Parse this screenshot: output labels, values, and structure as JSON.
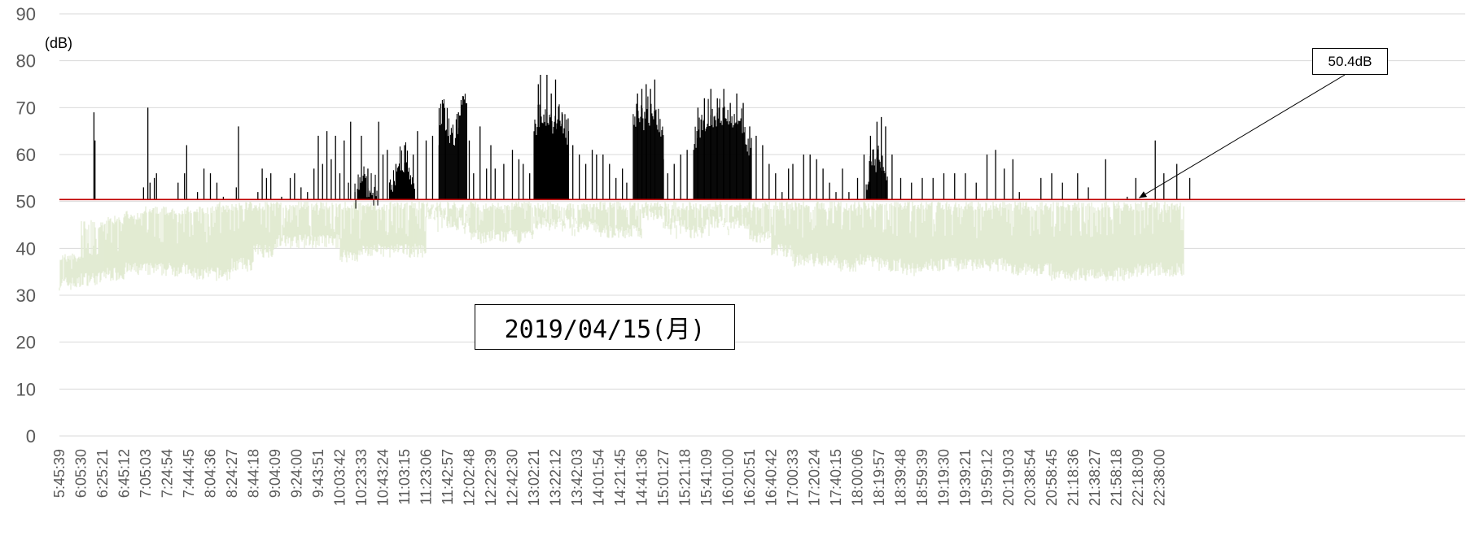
{
  "chart_data": {
    "type": "area",
    "y_unit_label": "(dB)",
    "ylim": [
      0,
      90
    ],
    "yticks": [
      0,
      10,
      20,
      30,
      40,
      50,
      60,
      70,
      80,
      90
    ],
    "grid": true,
    "x_tick_labels": [
      "5:45:39",
      "6:05:30",
      "6:25:21",
      "6:45:12",
      "7:05:03",
      "7:24:54",
      "7:44:45",
      "8:04:36",
      "8:24:27",
      "8:44:18",
      "9:04:09",
      "9:24:00",
      "9:43:51",
      "10:03:42",
      "10:23:33",
      "10:43:24",
      "11:03:15",
      "11:23:06",
      "11:42:57",
      "12:02:48",
      "12:22:39",
      "12:42:30",
      "13:02:21",
      "13:22:12",
      "13:42:03",
      "14:01:54",
      "14:21:45",
      "14:41:36",
      "15:01:27",
      "15:21:18",
      "15:41:09",
      "16:01:00",
      "16:20:51",
      "16:40:42",
      "17:00:33",
      "17:20:24",
      "17:40:15",
      "18:00:06",
      "18:19:57",
      "18:39:48",
      "18:59:39",
      "19:19:30",
      "19:39:21",
      "19:59:12",
      "20:19:03",
      "20:38:54",
      "20:58:45",
      "21:18:36",
      "21:38:27",
      "21:58:18",
      "22:18:09",
      "22:38:00"
    ],
    "series": [
      {
        "role": "background level below threshold",
        "color": "#e2ebd3",
        "segments_per_tick": [
          [
            31,
            39
          ],
          [
            32,
            46
          ],
          [
            33,
            47
          ],
          [
            34,
            48
          ],
          [
            34,
            49
          ],
          [
            34,
            49
          ],
          [
            33,
            49
          ],
          [
            33,
            50
          ],
          [
            35,
            50
          ],
          [
            38,
            50
          ],
          [
            40,
            50
          ],
          [
            40,
            50
          ],
          [
            40,
            50
          ],
          [
            37,
            50
          ],
          [
            38,
            50
          ],
          [
            38,
            50
          ],
          [
            38,
            50
          ],
          [
            46,
            50
          ],
          [
            44,
            50
          ],
          [
            41,
            50
          ],
          [
            41,
            50
          ],
          [
            41,
            50
          ],
          [
            44,
            50
          ],
          [
            44,
            50
          ],
          [
            43,
            50
          ],
          [
            42,
            50
          ],
          [
            42,
            50
          ],
          [
            46,
            50
          ],
          [
            44,
            50
          ],
          [
            42,
            50
          ],
          [
            44,
            50
          ],
          [
            44,
            50
          ],
          [
            41,
            50
          ],
          [
            38,
            50
          ],
          [
            36,
            50
          ],
          [
            36,
            50
          ],
          [
            35,
            50
          ],
          [
            36,
            50
          ],
          [
            35,
            50
          ],
          [
            34,
            50
          ],
          [
            35,
            50
          ],
          [
            35,
            50
          ],
          [
            35,
            50
          ],
          [
            35,
            50
          ],
          [
            34,
            50
          ],
          [
            34,
            50
          ],
          [
            33,
            50
          ],
          [
            33,
            50
          ],
          [
            33,
            50
          ],
          [
            33,
            50
          ],
          [
            34,
            50
          ],
          [
            34,
            50
          ]
        ]
      },
      {
        "role": "level above threshold",
        "color": "#000000",
        "dense_bands": [
          {
            "from_tick": 17.6,
            "to_tick": 18.9,
            "upper": [
              72,
              73,
              70,
              68,
              69,
              67,
              70,
              73,
              76,
              75
            ]
          },
          {
            "from_tick": 22.0,
            "to_tick": 23.6,
            "upper": [
              69,
              71,
              72,
              70,
              72,
              70,
              71,
              71,
              70,
              68
            ]
          },
          {
            "from_tick": 26.6,
            "to_tick": 28.0,
            "upper": [
              70,
              73,
              72,
              71,
              73,
              72,
              71,
              70,
              70,
              69
            ]
          },
          {
            "from_tick": 29.4,
            "to_tick": 32.1,
            "upper": [
              66,
              69,
              70,
              72,
              71,
              72,
              71,
              70,
              69,
              70,
              68,
              65
            ]
          },
          {
            "from_tick": 15.3,
            "to_tick": 16.5,
            "upper": [
              55,
              58,
              59,
              61,
              62,
              60,
              63,
              59,
              57,
              56
            ]
          },
          {
            "from_tick": 13.7,
            "to_tick": 14.8,
            "upper": [
              54,
              56,
              57,
              58,
              58,
              56,
              57,
              55,
              56,
              54
            ]
          },
          {
            "from_tick": 37.4,
            "to_tick": 38.4,
            "upper": [
              57,
              60,
              62,
              60,
              63,
              61,
              62,
              59
            ]
          }
        ],
        "spikes": [
          [
            1.6,
            69
          ],
          [
            1.65,
            63
          ],
          [
            3.9,
            53
          ],
          [
            4.1,
            70
          ],
          [
            4.2,
            54
          ],
          [
            4.4,
            55
          ],
          [
            4.5,
            56
          ],
          [
            5.5,
            54
          ],
          [
            5.8,
            56
          ],
          [
            5.9,
            62
          ],
          [
            6.4,
            52
          ],
          [
            6.7,
            57
          ],
          [
            7.0,
            56
          ],
          [
            7.3,
            54
          ],
          [
            7.6,
            51
          ],
          [
            8.2,
            53
          ],
          [
            8.3,
            66
          ],
          [
            9.2,
            52
          ],
          [
            9.4,
            57
          ],
          [
            9.6,
            55
          ],
          [
            9.8,
            56
          ],
          [
            10.3,
            51
          ],
          [
            10.7,
            55
          ],
          [
            10.9,
            56
          ],
          [
            11.2,
            53
          ],
          [
            11.5,
            52
          ],
          [
            11.8,
            57
          ],
          [
            12.0,
            64
          ],
          [
            12.2,
            58
          ],
          [
            12.4,
            65
          ],
          [
            12.6,
            59
          ],
          [
            12.8,
            64
          ],
          [
            13.0,
            56
          ],
          [
            13.2,
            63
          ],
          [
            13.4,
            54
          ],
          [
            13.5,
            67
          ],
          [
            13.7,
            52
          ],
          [
            14.0,
            64
          ],
          [
            14.3,
            57
          ],
          [
            14.8,
            67
          ],
          [
            15.0,
            60
          ],
          [
            15.2,
            61
          ],
          [
            15.6,
            58
          ],
          [
            16.0,
            62
          ],
          [
            16.4,
            60
          ],
          [
            16.6,
            65
          ],
          [
            17.0,
            63
          ],
          [
            17.3,
            64
          ],
          [
            17.6,
            62
          ],
          [
            17.9,
            65
          ],
          [
            18.5,
            69
          ],
          [
            19.0,
            63
          ],
          [
            19.2,
            56
          ],
          [
            19.5,
            66
          ],
          [
            19.8,
            57
          ],
          [
            20.0,
            62
          ],
          [
            20.2,
            57
          ],
          [
            20.6,
            58
          ],
          [
            21.0,
            61
          ],
          [
            21.3,
            59
          ],
          [
            21.5,
            58
          ],
          [
            21.8,
            56
          ],
          [
            22.2,
            75
          ],
          [
            22.3,
            77
          ],
          [
            22.6,
            77
          ],
          [
            22.8,
            73
          ],
          [
            23.0,
            76
          ],
          [
            23.3,
            69
          ],
          [
            23.6,
            65
          ],
          [
            23.8,
            62
          ],
          [
            24.1,
            60
          ],
          [
            24.4,
            58
          ],
          [
            24.7,
            61
          ],
          [
            24.9,
            60
          ],
          [
            25.2,
            60
          ],
          [
            25.5,
            58
          ],
          [
            25.8,
            55
          ],
          [
            26.1,
            57
          ],
          [
            26.3,
            54
          ],
          [
            26.8,
            73
          ],
          [
            27.0,
            74
          ],
          [
            27.2,
            75
          ],
          [
            27.4,
            74
          ],
          [
            27.6,
            76
          ],
          [
            28.0,
            59
          ],
          [
            28.2,
            56
          ],
          [
            28.5,
            58
          ],
          [
            28.8,
            60
          ],
          [
            29.1,
            61
          ],
          [
            29.6,
            70
          ],
          [
            29.9,
            72
          ],
          [
            30.2,
            74
          ],
          [
            30.5,
            72
          ],
          [
            30.8,
            74
          ],
          [
            31.1,
            71
          ],
          [
            31.4,
            73
          ],
          [
            31.7,
            71
          ],
          [
            32.0,
            66
          ],
          [
            32.3,
            64
          ],
          [
            32.6,
            62
          ],
          [
            32.9,
            58
          ],
          [
            33.2,
            56
          ],
          [
            33.5,
            52
          ],
          [
            33.8,
            57
          ],
          [
            34.0,
            58
          ],
          [
            34.5,
            60
          ],
          [
            34.8,
            60
          ],
          [
            35.1,
            59
          ],
          [
            35.4,
            57
          ],
          [
            35.7,
            54
          ],
          [
            36.0,
            52
          ],
          [
            36.3,
            57
          ],
          [
            36.6,
            52
          ],
          [
            37.0,
            55
          ],
          [
            37.3,
            60
          ],
          [
            37.6,
            64
          ],
          [
            37.9,
            67
          ],
          [
            38.1,
            68
          ],
          [
            38.3,
            66
          ],
          [
            38.6,
            60
          ],
          [
            39.0,
            55
          ],
          [
            39.5,
            54
          ],
          [
            40.0,
            55
          ],
          [
            40.5,
            55
          ],
          [
            41.0,
            56
          ],
          [
            41.5,
            56
          ],
          [
            42.0,
            56
          ],
          [
            42.5,
            54
          ],
          [
            43.0,
            60
          ],
          [
            43.4,
            61
          ],
          [
            43.8,
            57
          ],
          [
            44.2,
            59
          ],
          [
            44.5,
            52
          ],
          [
            45.5,
            55
          ],
          [
            46.0,
            56
          ],
          [
            46.5,
            54
          ],
          [
            47.2,
            56
          ],
          [
            47.7,
            53
          ],
          [
            48.5,
            59
          ],
          [
            49.5,
            51
          ],
          [
            49.9,
            55
          ],
          [
            50.8,
            63
          ],
          [
            51.2,
            56
          ],
          [
            51.8,
            58
          ],
          [
            52.4,
            55
          ]
        ]
      },
      {
        "role": "threshold",
        "color": "#c00000",
        "value": 50.4
      }
    ],
    "annotations": [
      {
        "text": "2019/04/15(月)"
      },
      {
        "text": "50.4dB",
        "points_to_tick": 50.05,
        "points_to_value": 50.4
      }
    ]
  }
}
